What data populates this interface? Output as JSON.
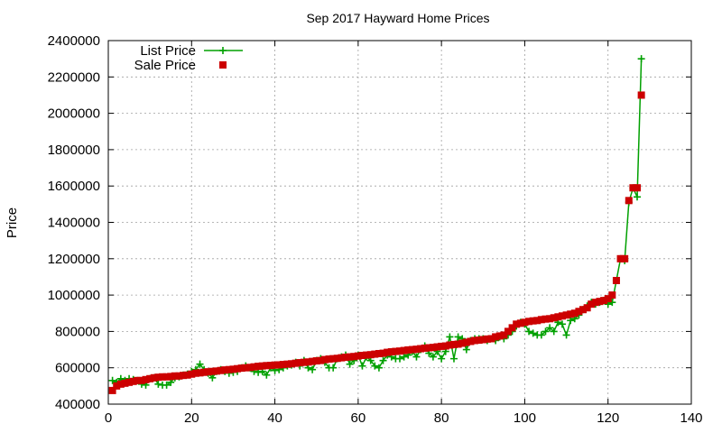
{
  "chart_data": {
    "type": "line",
    "title": "Sep 2017 Hayward Home Prices",
    "xlabel": "",
    "ylabel": "Price",
    "xlim": [
      0,
      140
    ],
    "ylim": [
      400000,
      2400000
    ],
    "x_ticks": [
      0,
      20,
      40,
      60,
      80,
      100,
      120,
      140
    ],
    "y_ticks": [
      400000,
      600000,
      800000,
      1000000,
      1200000,
      1400000,
      1600000,
      1800000,
      2000000,
      2200000,
      2400000
    ],
    "grid": true,
    "legend_position": "top-left",
    "series": [
      {
        "name": "List Price",
        "style": "line-with-plus-markers",
        "color": "#00a000",
        "values": [
          530000,
          520000,
          540000,
          530000,
          540000,
          535000,
          530000,
          510000,
          505000,
          540000,
          545000,
          510000,
          505000,
          505000,
          520000,
          545000,
          550000,
          560000,
          565000,
          580000,
          590000,
          620000,
          590000,
          570000,
          545000,
          580000,
          590000,
          580000,
          570000,
          575000,
          580000,
          600000,
          610000,
          600000,
          580000,
          575000,
          580000,
          560000,
          600000,
          585000,
          590000,
          600000,
          610000,
          615000,
          630000,
          610000,
          640000,
          600000,
          590000,
          640000,
          650000,
          630000,
          600000,
          600000,
          650000,
          660000,
          670000,
          620000,
          640000,
          670000,
          610000,
          660000,
          640000,
          610000,
          600000,
          640000,
          670000,
          660000,
          650000,
          650000,
          660000,
          670000,
          690000,
          660000,
          700000,
          720000,
          680000,
          660000,
          690000,
          650000,
          690000,
          770000,
          650000,
          770000,
          760000,
          700000,
          750000,
          760000,
          760000,
          760000,
          750000,
          760000,
          750000,
          770000,
          760000,
          780000,
          800000,
          830000,
          850000,
          840000,
          800000,
          790000,
          780000,
          780000,
          800000,
          820000,
          800000,
          850000,
          840000,
          780000,
          860000,
          870000,
          890000,
          920000,
          940000,
          960000,
          950000,
          960000,
          970000,
          950000,
          960000,
          1080000,
          1200000,
          1190000,
          1510000,
          1590000,
          1540000,
          2300000
        ]
      },
      {
        "name": "Sale Price",
        "style": "square-markers",
        "color": "#cc0000",
        "values": [
          475000,
          500000,
          510000,
          515000,
          520000,
          525000,
          530000,
          530000,
          535000,
          540000,
          545000,
          548000,
          550000,
          550000,
          552000,
          555000,
          555000,
          558000,
          560000,
          565000,
          570000,
          572000,
          575000,
          578000,
          580000,
          582000,
          585000,
          588000,
          590000,
          592000,
          595000,
          598000,
          600000,
          602000,
          605000,
          608000,
          610000,
          612000,
          613000,
          615000,
          616000,
          618000,
          620000,
          622000,
          625000,
          628000,
          630000,
          632000,
          635000,
          638000,
          640000,
          645000,
          648000,
          650000,
          652000,
          655000,
          658000,
          660000,
          662000,
          665000,
          668000,
          670000,
          672000,
          675000,
          678000,
          680000,
          685000,
          688000,
          690000,
          692000,
          695000,
          698000,
          700000,
          702000,
          705000,
          708000,
          710000,
          712000,
          715000,
          718000,
          720000,
          725000,
          728000,
          730000,
          735000,
          740000,
          745000,
          750000,
          752000,
          755000,
          758000,
          760000,
          770000,
          775000,
          780000,
          800000,
          820000,
          840000,
          845000,
          850000,
          855000,
          858000,
          860000,
          865000,
          868000,
          870000,
          875000,
          880000,
          885000,
          890000,
          895000,
          900000,
          910000,
          920000,
          930000,
          950000,
          960000,
          965000,
          970000,
          980000,
          1000000,
          1080000,
          1200000,
          1200000,
          1520000,
          1590000,
          1590000,
          2100000
        ]
      }
    ]
  }
}
